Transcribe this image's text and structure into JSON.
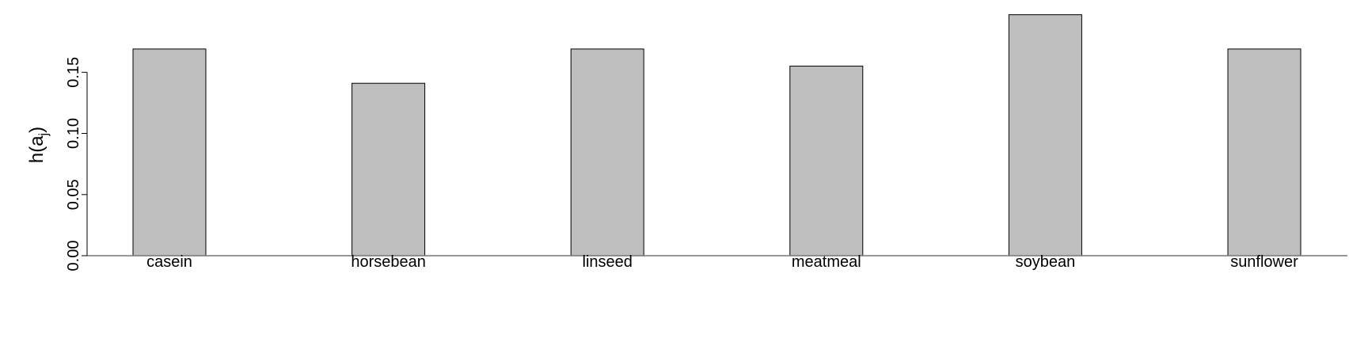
{
  "chart_data": {
    "type": "bar",
    "categories": [
      "casein",
      "horsebean",
      "linseed",
      "meatmeal",
      "soybean",
      "sunflower"
    ],
    "values": [
      0.169,
      0.141,
      0.169,
      0.155,
      0.197,
      0.169
    ],
    "title": "",
    "xlabel": "",
    "ylabel": {
      "base": "h(a",
      "subscript": "j",
      "close": ")"
    },
    "ylim": [
      0,
      0.2
    ],
    "yticks": [
      {
        "value": 0,
        "label": "0.00"
      },
      {
        "value": 0.05,
        "label": "0.05"
      },
      {
        "value": 0.1,
        "label": "0.10"
      },
      {
        "value": 0.15,
        "label": "0.15"
      }
    ],
    "grid": false,
    "legend": "none",
    "bar_fill": "#bebebe",
    "bar_stroke": "#000000",
    "axis_color": "#000000"
  }
}
